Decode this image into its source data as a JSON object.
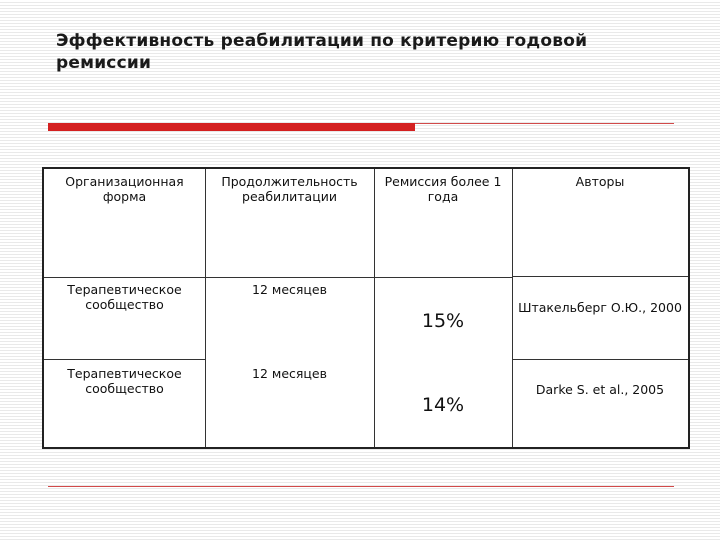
{
  "slide": {
    "title": "Эффективность реабилитации по критерию годовой ремиссии"
  },
  "table": {
    "headers": [
      "Организационная форма",
      "Продолжительность реабилитации",
      "Ремиссия более 1 года",
      "Авторы"
    ],
    "rows": [
      {
        "form": "Терапевтическое сообщество",
        "duration": "12 месяцев",
        "remission": "15%",
        "authors": "Штакельберг О.Ю., 2000"
      },
      {
        "form": "Терапевтическое сообщество",
        "duration": "12 месяцев",
        "remission": "14%",
        "authors": "Darke S. et al., 2005"
      }
    ]
  },
  "colors": {
    "accent": "#d42020",
    "border": "#222222"
  }
}
